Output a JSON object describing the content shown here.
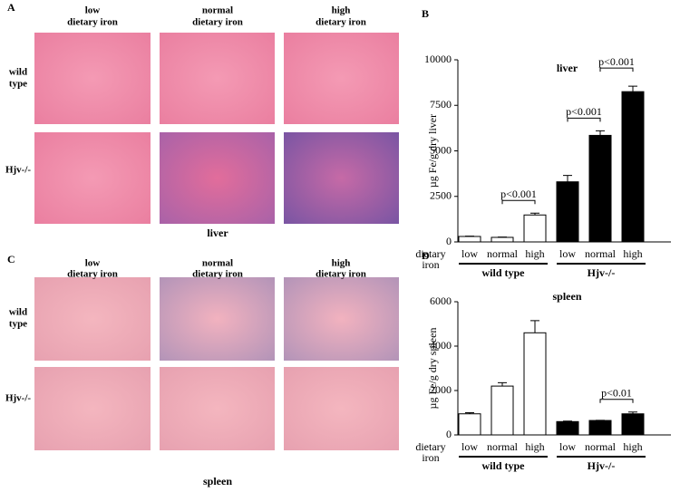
{
  "panel_a": {
    "panel_label": "A",
    "columns": [
      [
        "low",
        "dietary iron"
      ],
      [
        "normal",
        "dietary iron"
      ],
      [
        "high",
        "dietary iron"
      ]
    ],
    "rows": [
      [
        "wild",
        "type"
      ],
      [
        "Hjv-/-"
      ]
    ],
    "caption": "liver"
  },
  "panel_c": {
    "panel_label": "C",
    "columns": [
      [
        "low",
        "dietary iron"
      ],
      [
        "normal",
        "dietary iron"
      ],
      [
        "high",
        "dietary iron"
      ]
    ],
    "rows": [
      [
        "wild",
        "type"
      ],
      [
        "Hjv-/-"
      ]
    ],
    "caption": "spleen"
  },
  "chart_data": [
    {
      "type": "bar",
      "panel_label": "B",
      "title": "liver",
      "y_label": "µg Fe/g dry liver",
      "x_label": [
        "dietary",
        "iron"
      ],
      "categories": [
        "low",
        "normal",
        "high"
      ],
      "ylim": [
        0,
        10000
      ],
      "yticks": [
        0,
        2500,
        5000,
        7500,
        10000
      ],
      "series": [
        {
          "name": "wild type",
          "color": "#ffffff",
          "values": [
            300,
            250,
            1480
          ],
          "errors": [
            20,
            20,
            100
          ],
          "annotations": [
            {
              "text": "p<0.001",
              "between": [
                "normal",
                "high"
              ]
            }
          ]
        },
        {
          "name": "Hjv-/-",
          "color": "#000000",
          "values": [
            3300,
            5850,
            8250
          ],
          "errors": [
            350,
            250,
            300
          ],
          "annotations": [
            {
              "text": "p<0.001",
              "between": [
                "low",
                "normal"
              ]
            },
            {
              "text": "p<0.001",
              "between": [
                "normal",
                "high"
              ]
            }
          ]
        }
      ]
    },
    {
      "type": "bar",
      "panel_label": "D",
      "title": "spleen",
      "y_label": "µg Fe/g dry spleen",
      "x_label": [
        "dietary",
        "iron"
      ],
      "categories": [
        "low",
        "normal",
        "high"
      ],
      "ylim": [
        0,
        6000
      ],
      "yticks": [
        0,
        2000,
        4000,
        6000
      ],
      "series": [
        {
          "name": "wild type",
          "color": "#ffffff",
          "values": [
            950,
            2200,
            4600
          ],
          "errors": [
            50,
            150,
            550
          ],
          "annotations": []
        },
        {
          "name": "Hjv-/-",
          "color": "#000000",
          "values": [
            600,
            650,
            950
          ],
          "errors": [
            20,
            10,
            80
          ],
          "annotations": [
            {
              "text": "p<0.01",
              "between": [
                "normal",
                "high"
              ]
            }
          ]
        }
      ]
    }
  ]
}
